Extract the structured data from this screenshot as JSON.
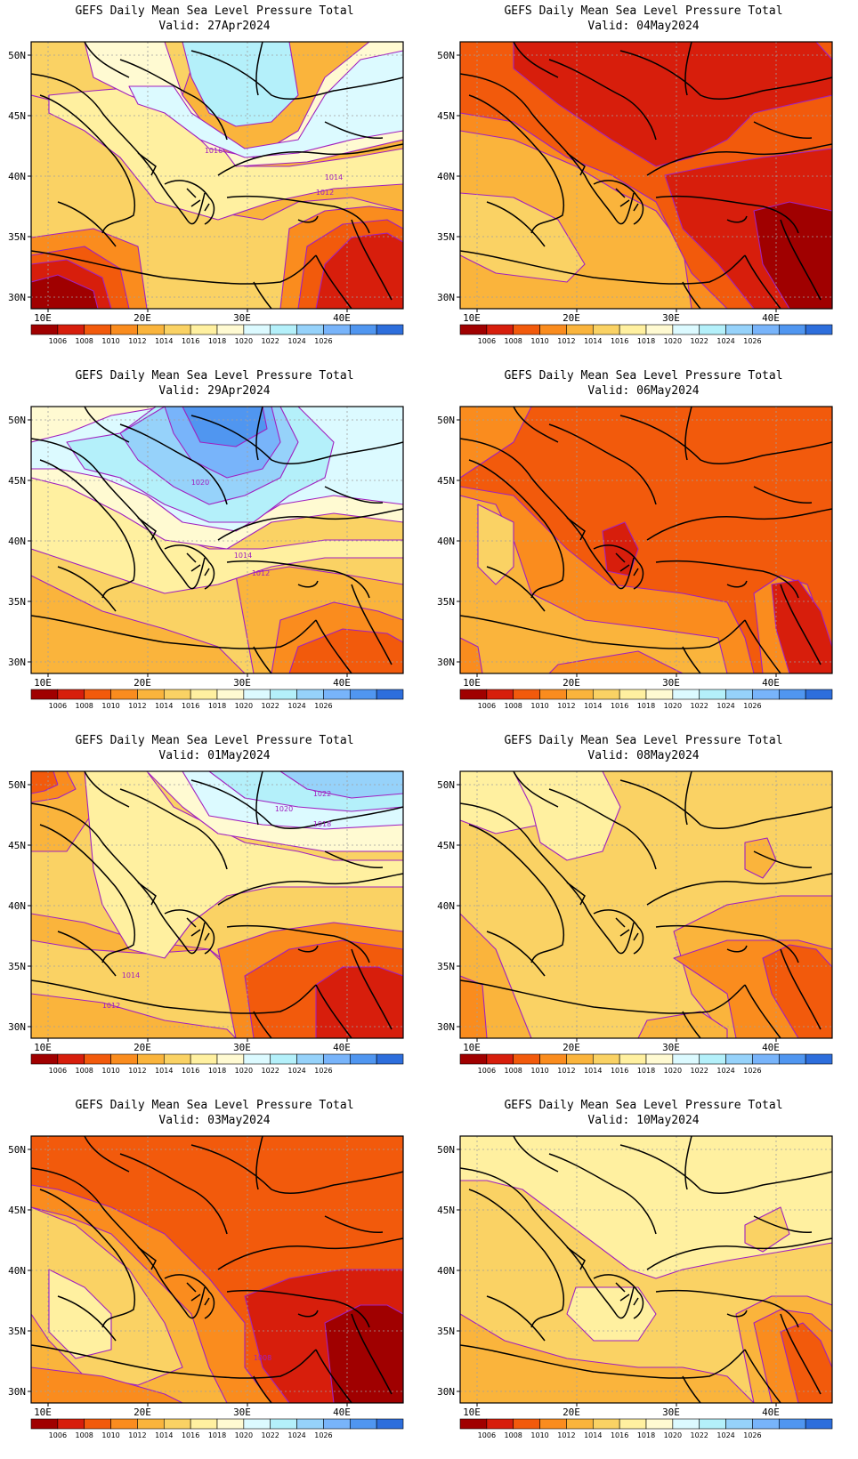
{
  "panels": [
    {
      "title": "GEFS Daily Mean Sea Level Pressure Total",
      "valid": "Valid: 27Apr2024",
      "labels": [
        "1016",
        "1014",
        "1012"
      ]
    },
    {
      "title": "GEFS Daily Mean Sea Level Pressure Total",
      "valid": "Valid: 04May2024",
      "labels": []
    },
    {
      "title": "GEFS Daily Mean Sea Level Pressure Total",
      "valid": "Valid: 29Apr2024",
      "labels": [
        "1020",
        "1014",
        "1012"
      ]
    },
    {
      "title": "GEFS Daily Mean Sea Level Pressure Total",
      "valid": "Valid: 06May2024",
      "labels": []
    },
    {
      "title": "GEFS Daily Mean Sea Level Pressure Total",
      "valid": "Valid: 01May2024",
      "labels": [
        "1022",
        "1020",
        "1018",
        "1014",
        "1012"
      ]
    },
    {
      "title": "GEFS Daily Mean Sea Level Pressure Total",
      "valid": "Valid: 08May2024",
      "labels": []
    },
    {
      "title": "GEFS Daily Mean Sea Level Pressure Total",
      "valid": "Valid: 03May2024",
      "labels": [
        "1008"
      ]
    },
    {
      "title": "GEFS Daily Mean Sea Level Pressure Total",
      "valid": "Valid: 10May2024",
      "labels": []
    }
  ],
  "axes": {
    "lat_labels": [
      "50N",
      "45N",
      "40N",
      "35N",
      "30N"
    ],
    "lon_labels": [
      "10E",
      "20E",
      "30E",
      "40E"
    ]
  },
  "colorbar": {
    "colors": [
      "#a00000",
      "#d71e0c",
      "#f25a0c",
      "#fa8c1e",
      "#fab43c",
      "#fad264",
      "#fff0a0",
      "#fffad2",
      "#dcfaff",
      "#b4f0fa",
      "#96d2fa",
      "#78b4fa",
      "#5096f0",
      "#2d6edc"
    ],
    "labels": [
      "1006",
      "1008",
      "1010",
      "1012",
      "1014",
      "1016",
      "1018",
      "1020",
      "1022",
      "1024",
      "1026"
    ]
  },
  "colors": {
    "contour_line": "#a020c0",
    "grid_line": "#a0a0a0",
    "coast_line": "#000000"
  }
}
